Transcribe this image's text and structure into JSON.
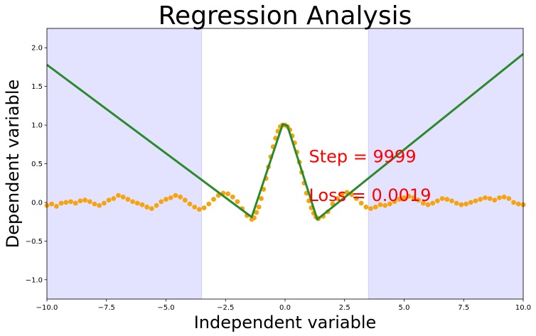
{
  "chart_data": {
    "type": "scatter",
    "title": "Regression Analysis",
    "xlabel": "Independent variable",
    "ylabel": "Dependent variable",
    "xlim": [
      -10,
      10
    ],
    "ylim": [
      -1.25,
      2.25
    ],
    "grid": false,
    "xticks": [
      "−10.0",
      "−7.5",
      "−5.0",
      "−2.5",
      "0.0",
      "2.5",
      "5.0",
      "7.5",
      "10.0"
    ],
    "yticks": [
      "−1.0",
      "−0.5",
      "0.0",
      "0.5",
      "1.0",
      "1.5",
      "2.0"
    ],
    "shaded_regions": [
      {
        "x": [
          -10,
          -3.5
        ],
        "color": "#e3e3ff"
      },
      {
        "x": [
          3.5,
          10
        ],
        "color": "#e3e3ff"
      }
    ],
    "scatter": {
      "color": "#f5a30f",
      "points": [
        [
          -10.0,
          -0.04
        ],
        [
          -9.8,
          -0.02
        ],
        [
          -9.6,
          -0.05
        ],
        [
          -9.4,
          -0.01
        ],
        [
          -9.2,
          0.0
        ],
        [
          -9.0,
          0.01
        ],
        [
          -8.8,
          -0.01
        ],
        [
          -8.6,
          0.02
        ],
        [
          -8.4,
          0.03
        ],
        [
          -8.2,
          0.01
        ],
        [
          -8.0,
          -0.02
        ],
        [
          -7.8,
          -0.04
        ],
        [
          -7.6,
          -0.01
        ],
        [
          -7.4,
          0.03
        ],
        [
          -7.2,
          0.05
        ],
        [
          -7.0,
          0.09
        ],
        [
          -6.8,
          0.07
        ],
        [
          -6.6,
          0.04
        ],
        [
          -6.4,
          0.01
        ],
        [
          -6.2,
          -0.01
        ],
        [
          -6.0,
          -0.03
        ],
        [
          -5.8,
          -0.06
        ],
        [
          -5.6,
          -0.08
        ],
        [
          -5.4,
          -0.04
        ],
        [
          -5.2,
          0.01
        ],
        [
          -5.0,
          0.04
        ],
        [
          -4.8,
          0.06
        ],
        [
          -4.6,
          0.09
        ],
        [
          -4.4,
          0.07
        ],
        [
          -4.2,
          0.03
        ],
        [
          -4.0,
          -0.02
        ],
        [
          -3.8,
          -0.06
        ],
        [
          -3.6,
          -0.09
        ],
        [
          -3.4,
          -0.07
        ],
        [
          -3.2,
          -0.02
        ],
        [
          -3.0,
          0.04
        ],
        [
          -2.8,
          0.09
        ],
        [
          -2.6,
          0.12
        ],
        [
          -2.4,
          0.11
        ],
        [
          -2.2,
          0.07
        ],
        [
          -2.0,
          0.01
        ],
        [
          -1.8,
          -0.08
        ],
        [
          -1.6,
          -0.17
        ],
        [
          -1.4,
          -0.22
        ],
        [
          -1.3,
          -0.2
        ],
        [
          -1.2,
          -0.13
        ],
        [
          -1.1,
          -0.06
        ],
        [
          -1.0,
          0.05
        ],
        [
          -0.9,
          0.17
        ],
        [
          -0.8,
          0.31
        ],
        [
          -0.7,
          0.46
        ],
        [
          -0.6,
          0.59
        ],
        [
          -0.5,
          0.72
        ],
        [
          -0.4,
          0.83
        ],
        [
          -0.3,
          0.92
        ],
        [
          -0.2,
          0.98
        ],
        [
          -0.1,
          1.0
        ],
        [
          0.0,
          1.0
        ],
        [
          0.1,
          0.98
        ],
        [
          0.2,
          0.94
        ],
        [
          0.3,
          0.86
        ],
        [
          0.4,
          0.77
        ],
        [
          0.5,
          0.65
        ],
        [
          0.6,
          0.52
        ],
        [
          0.7,
          0.39
        ],
        [
          0.8,
          0.25
        ],
        [
          0.9,
          0.12
        ],
        [
          1.0,
          0.02
        ],
        [
          1.1,
          -0.07
        ],
        [
          1.2,
          -0.14
        ],
        [
          1.3,
          -0.19
        ],
        [
          1.4,
          -0.21
        ],
        [
          1.6,
          -0.18
        ],
        [
          1.8,
          -0.12
        ],
        [
          2.0,
          -0.02
        ],
        [
          2.2,
          0.05
        ],
        [
          2.4,
          0.11
        ],
        [
          2.6,
          0.13
        ],
        [
          2.8,
          0.1
        ],
        [
          3.0,
          0.05
        ],
        [
          3.2,
          -0.01
        ],
        [
          3.4,
          -0.06
        ],
        [
          3.6,
          -0.08
        ],
        [
          3.8,
          -0.06
        ],
        [
          4.0,
          -0.03
        ],
        [
          4.2,
          -0.04
        ],
        [
          4.4,
          -0.02
        ],
        [
          4.6,
          0.01
        ],
        [
          4.8,
          0.04
        ],
        [
          5.0,
          0.06
        ],
        [
          5.2,
          0.08
        ],
        [
          5.4,
          0.06
        ],
        [
          5.6,
          0.03
        ],
        [
          5.8,
          -0.01
        ],
        [
          6.0,
          -0.03
        ],
        [
          6.2,
          -0.01
        ],
        [
          6.4,
          0.02
        ],
        [
          6.6,
          0.05
        ],
        [
          6.8,
          0.04
        ],
        [
          7.0,
          0.02
        ],
        [
          7.2,
          -0.01
        ],
        [
          7.4,
          -0.03
        ],
        [
          7.6,
          -0.02
        ],
        [
          7.8,
          0.0
        ],
        [
          8.0,
          0.02
        ],
        [
          8.2,
          0.04
        ],
        [
          8.4,
          0.06
        ],
        [
          8.6,
          0.05
        ],
        [
          8.8,
          0.03
        ],
        [
          9.0,
          0.06
        ],
        [
          9.2,
          0.07
        ],
        [
          9.4,
          0.05
        ],
        [
          9.6,
          0.0
        ],
        [
          9.8,
          -0.02
        ],
        [
          10.0,
          -0.03
        ]
      ]
    },
    "fit_line": {
      "color": "#2b8a2b",
      "points": [
        [
          -10.0,
          1.78
        ],
        [
          -1.4,
          -0.19
        ],
        [
          -0.1,
          1.01
        ],
        [
          0.1,
          0.99
        ],
        [
          1.35,
          -0.22
        ],
        [
          10.0,
          1.92
        ]
      ]
    },
    "annotations": [
      {
        "text": "Step = 9999",
        "x": 1.0,
        "y": 0.52,
        "color": "#ff0000"
      },
      {
        "text": "Loss = 0.0019",
        "x": 1.0,
        "y": 0.02,
        "color": "#ff0000"
      }
    ]
  }
}
